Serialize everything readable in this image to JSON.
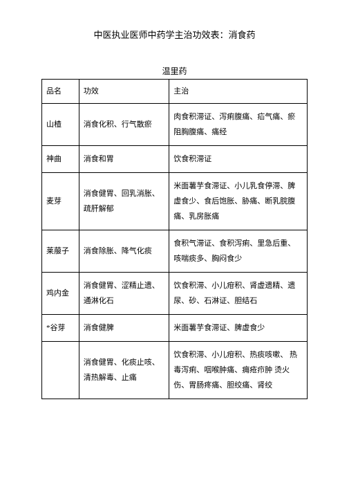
{
  "title": "中医执业医师中药学主治功效表：消食药",
  "subtitle": "温里药",
  "headers": {
    "name": "品名",
    "effect": "功效",
    "treat": "主治"
  },
  "rows": [
    {
      "name": "山楂",
      "effect": "消食化积、行气散瘀",
      "treat": "肉食积滞证、泻痢腹痛、疝气痛、瘀阻胸腹痛、痛经"
    },
    {
      "name": "神曲",
      "effect": "消食和胃",
      "treat": "饮食积滞证"
    },
    {
      "name": "麦芽",
      "effect": "消食健胃、回乳消胀、疏肝解郁",
      "treat": "米面薯芋食滞证、小儿乳食停滞、脾虚食少、食后饱胀、胁痛、断乳脘腹痛、乳房胀痛"
    },
    {
      "name": "莱菔子",
      "effect": "消食除胀、降气化痰",
      "treat": "食积气滞证、食积泻痢、里急后重、咳喘痰多、胸闷食少"
    },
    {
      "name": "鸡内金",
      "effect": "消食健胃、涩精止遗、通淋化石",
      "treat": "饮食积滞、小儿疳积、肾虚遗精、遗尿、砂、石淋证、胆结石"
    },
    {
      "name": "*谷芽",
      "effect": "消食健脾",
      "treat": "米面薯芋食滞证、脾虚食少"
    },
    {
      "name": "",
      "effect": "消食健胃、化痰止咳、清热解毒、止痛",
      "treat": "饮食积滞、小儿疳积、热痰咳嗽、 热毒泻痢、咽喉肿痛、痈疮疖肿  烫火伤、胃肠疼痛、胆绞痛、肾绞"
    }
  ]
}
